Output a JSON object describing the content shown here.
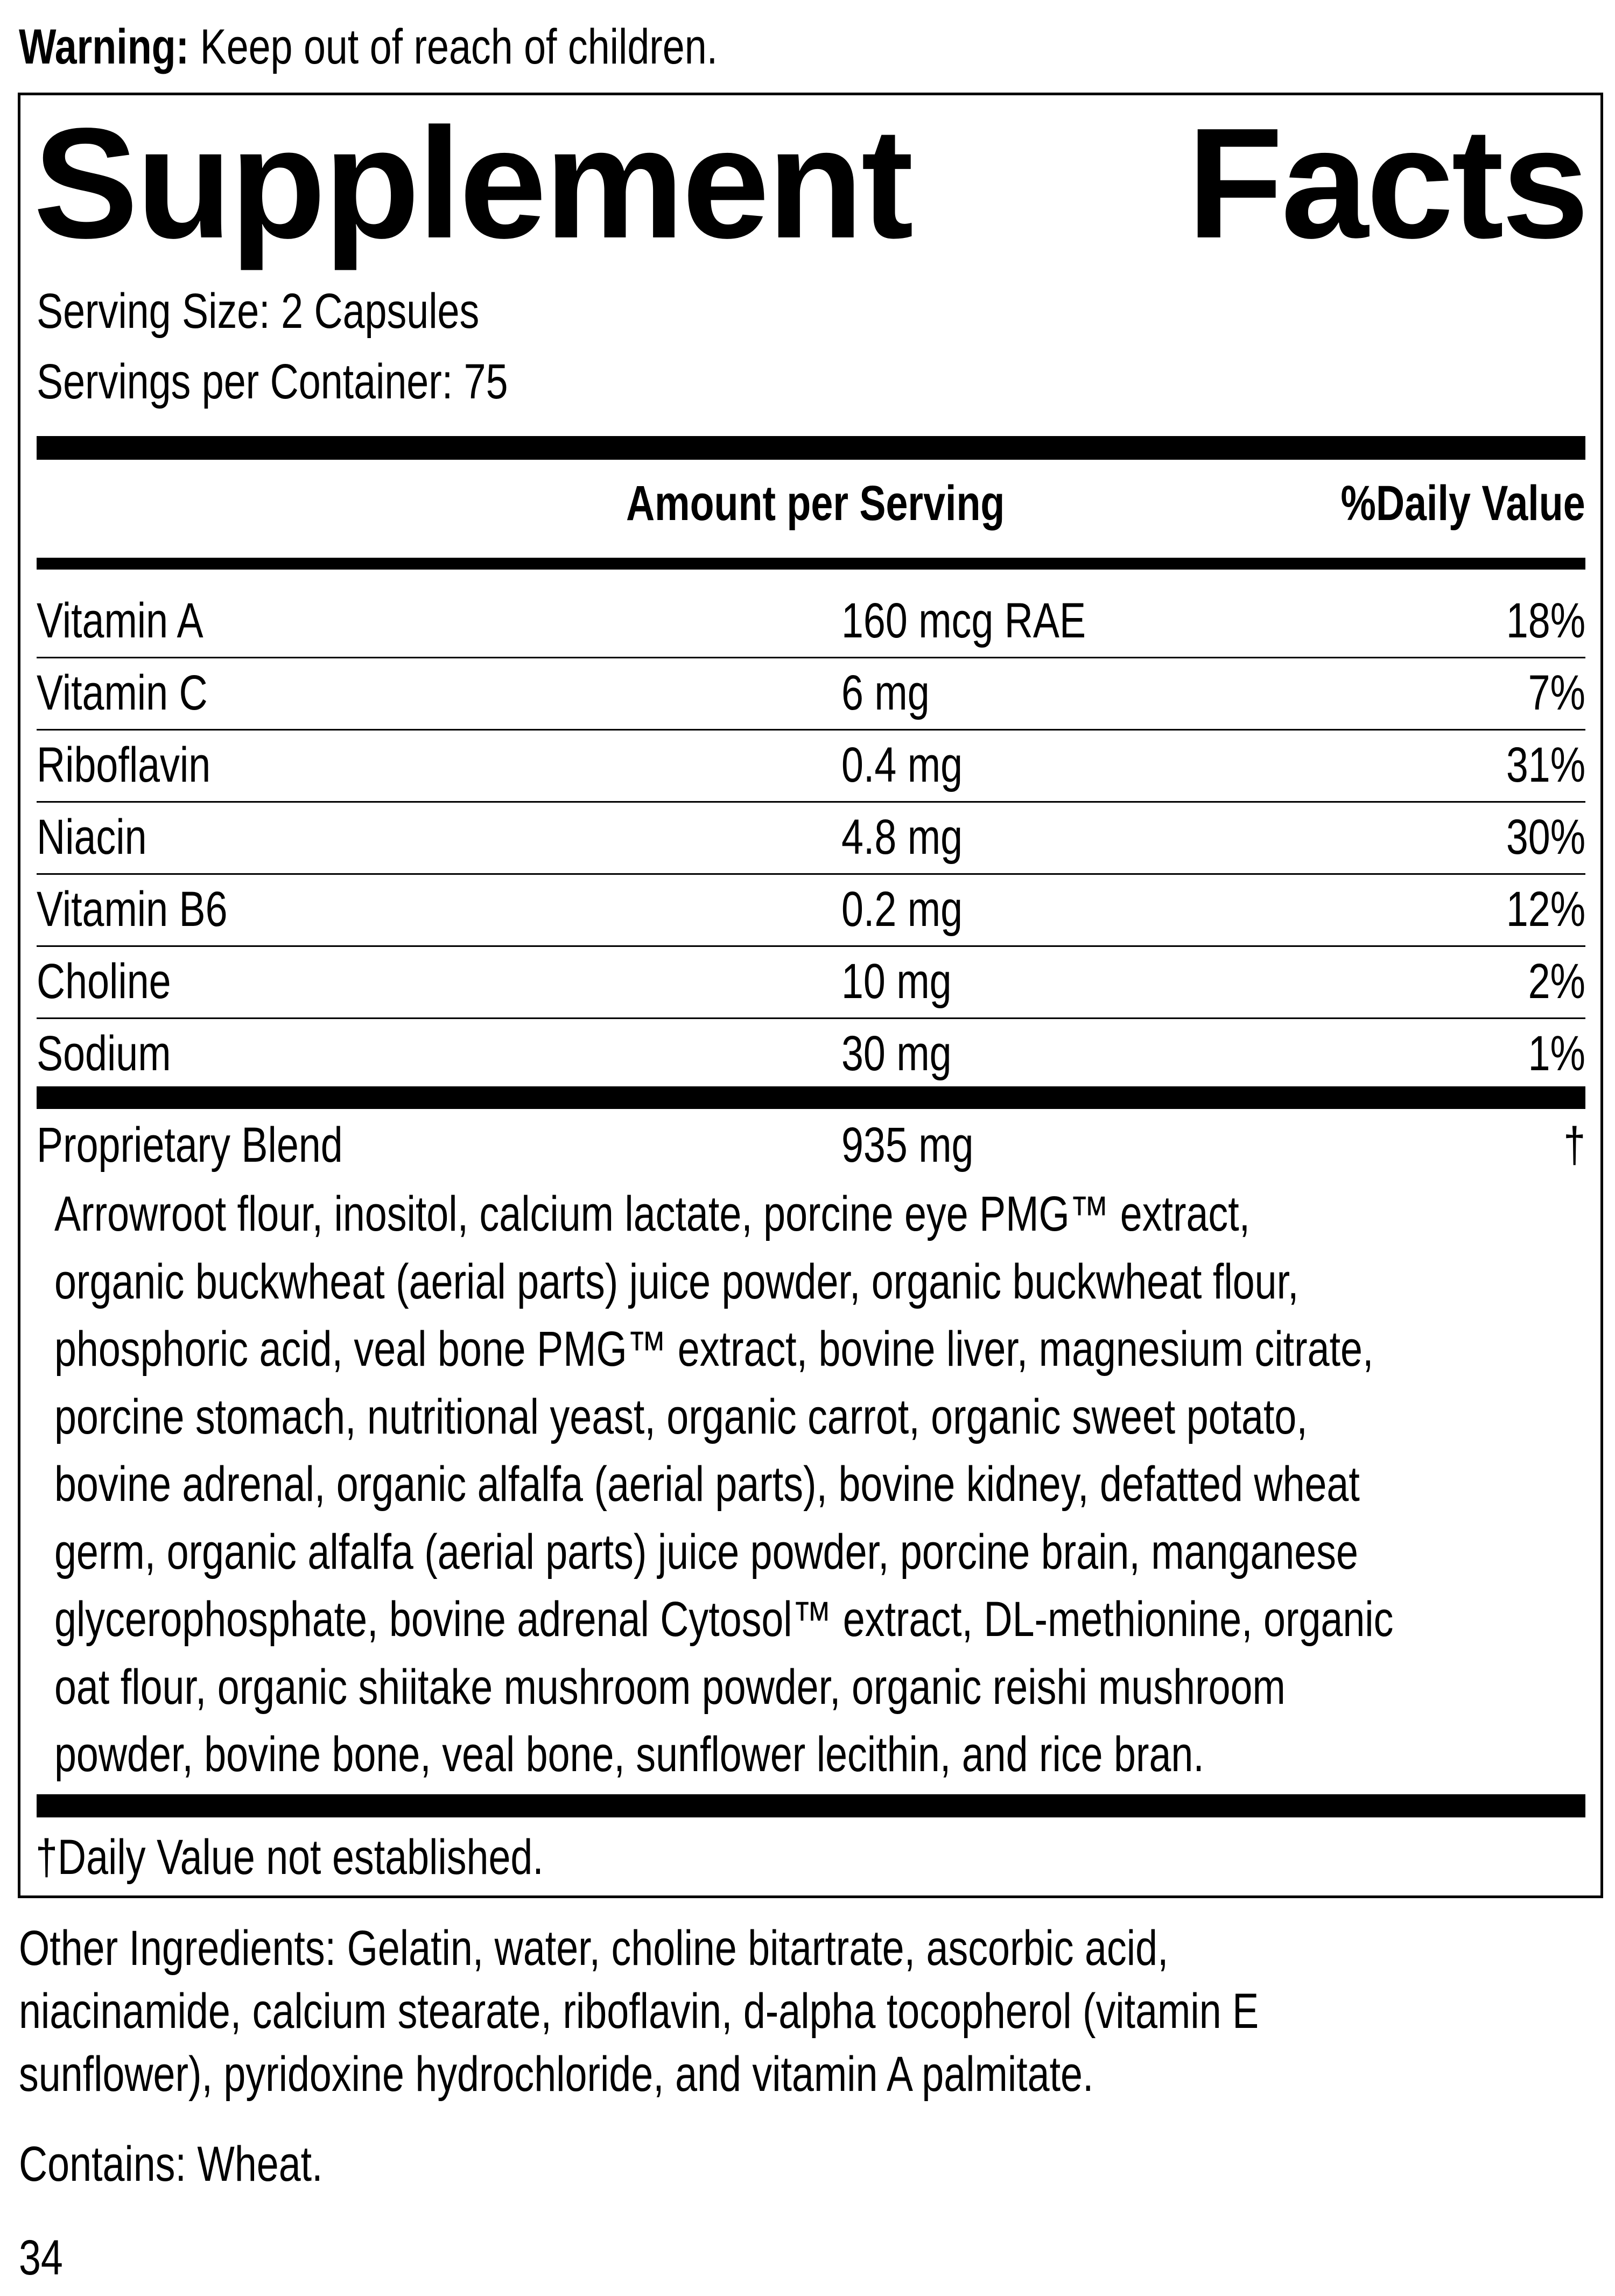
{
  "warning": {
    "label": "Warning:",
    "text": "Keep out of reach of children."
  },
  "title": {
    "word1": "Supplement",
    "word2": "Facts"
  },
  "serving_size": "Serving Size: 2 Capsules",
  "servings_per_container": "Servings per Container: 75",
  "header": {
    "amount": "Amount per Serving",
    "dv": "%Daily Value"
  },
  "nutrients": [
    {
      "name": "Vitamin A",
      "amount": "160 mcg RAE",
      "dv": "18%"
    },
    {
      "name": "Vitamin C",
      "amount": "6 mg",
      "dv": "7%"
    },
    {
      "name": "Riboflavin",
      "amount": "0.4 mg",
      "dv": "31%"
    },
    {
      "name": "Niacin",
      "amount": "4.8 mg",
      "dv": "30%"
    },
    {
      "name": "Vitamin B6",
      "amount": "0.2 mg",
      "dv": "12%"
    },
    {
      "name": "Choline",
      "amount": "10 mg",
      "dv": "2%"
    },
    {
      "name": "Sodium",
      "amount": "30 mg",
      "dv": "1%"
    }
  ],
  "blend": {
    "name": "Proprietary Blend",
    "amount": "935 mg",
    "dv": "†",
    "ingredients_lines": [
      "Arrowroot flour, inositol, calcium lactate, porcine eye PMG™ extract,",
      "organic buckwheat (aerial parts) juice powder, organic buckwheat flour,",
      "phosphoric acid, veal bone PMG™ extract, bovine liver, magnesium citrate,",
      "porcine stomach, nutritional yeast, organic carrot, organic sweet potato,",
      "bovine adrenal, organic alfalfa (aerial parts), bovine kidney, defatted wheat",
      "germ, organic alfalfa (aerial parts) juice powder, porcine brain, manganese",
      "glycerophosphate, bovine adrenal Cytosol™ extract, DL-methionine, organic",
      "oat flour, organic shiitake mushroom powder, organic reishi mushroom",
      "powder, bovine bone, veal bone, sunflower lecithin, and rice bran."
    ]
  },
  "dv_note": "†Daily Value not established.",
  "other_ingredients_lines": [
    "Other Ingredients: Gelatin, water, choline bitartrate, ascorbic acid,",
    "niacinamide, calcium stearate, riboflavin, d-alpha tocopherol (vitamin E",
    "sunflower), pyridoxine hydrochloride, and vitamin A palmitate."
  ],
  "contains": "Contains: Wheat.",
  "page_number": "34"
}
